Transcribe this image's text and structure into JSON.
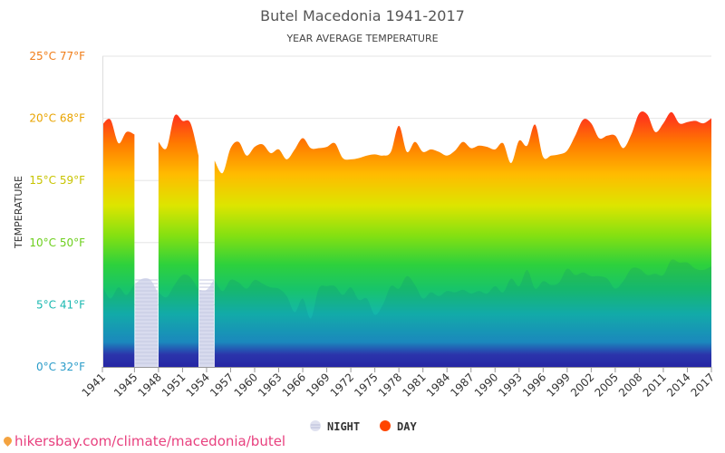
{
  "chart_data": {
    "type": "area",
    "title": "Butel Macedonia 1941-2017",
    "subtitle": "YEAR AVERAGE TEMPERATURE",
    "ylabel": "TEMPERATURE",
    "ylim": [
      0,
      25
    ],
    "xlim": [
      1941,
      2017
    ],
    "y_ticks": [
      {
        "value": 0,
        "label": "0°C 32°F",
        "color": "#2a9cc9"
      },
      {
        "value": 5,
        "label": "5°C 41°F",
        "color": "#19b8b0"
      },
      {
        "value": 10,
        "label": "10°C 50°F",
        "color": "#6ccf1c"
      },
      {
        "value": 15,
        "label": "15°C 59°F",
        "color": "#c8c400"
      },
      {
        "value": 20,
        "label": "20°C 68°F",
        "color": "#e9a400"
      },
      {
        "value": 25,
        "label": "25°C 77°F",
        "color": "#f07c17"
      }
    ],
    "x_ticks": [
      1941,
      1945,
      1948,
      1951,
      1954,
      1957,
      1960,
      1963,
      1966,
      1969,
      1972,
      1975,
      1978,
      1981,
      1984,
      1987,
      1990,
      1993,
      1996,
      1999,
      2002,
      2005,
      2008,
      2011,
      2014,
      2017
    ],
    "x": [
      1941,
      1942,
      1943,
      1944,
      1945,
      1946,
      1947,
      1948,
      1949,
      1950,
      1951,
      1952,
      1953,
      1954,
      1955,
      1956,
      1957,
      1958,
      1959,
      1960,
      1961,
      1962,
      1963,
      1964,
      1965,
      1966,
      1967,
      1968,
      1969,
      1970,
      1971,
      1972,
      1973,
      1974,
      1975,
      1976,
      1977,
      1978,
      1979,
      1980,
      1981,
      1982,
      1983,
      1984,
      1985,
      1986,
      1987,
      1988,
      1989,
      1990,
      1991,
      1992,
      1993,
      1994,
      1995,
      1996,
      1997,
      1998,
      1999,
      2000,
      2001,
      2002,
      2003,
      2004,
      2005,
      2006,
      2007,
      2008,
      2009,
      2010,
      2011,
      2012,
      2013,
      2014,
      2015,
      2016,
      2017
    ],
    "series": [
      {
        "name": "NIGHT",
        "color": "#c9cde8",
        "values": [
          6.5,
          5.5,
          6.4,
          5.8,
          6.7,
          6.9,
          6.8,
          6.0,
          5.6,
          6.6,
          7.4,
          7.2,
          6.2,
          6.0,
          7.0,
          6.1,
          7.0,
          6.8,
          6.3,
          7.0,
          6.7,
          6.4,
          6.3,
          5.7,
          4.4,
          5.5,
          3.9,
          6.3,
          6.5,
          6.5,
          5.8,
          6.4,
          5.4,
          5.5,
          4.2,
          5.0,
          6.5,
          6.3,
          7.3,
          6.6,
          5.5,
          6.0,
          5.7,
          6.1,
          6.0,
          6.2,
          5.9,
          6.1,
          5.9,
          6.5,
          6.0,
          7.1,
          6.5,
          7.8,
          6.3,
          6.9,
          6.6,
          6.8,
          7.9,
          7.4,
          7.6,
          7.3,
          7.3,
          7.1,
          6.3,
          6.9,
          7.9,
          7.9,
          7.4,
          7.5,
          7.4,
          8.6,
          8.4,
          8.4,
          7.9,
          7.8,
          8.1
        ]
      },
      {
        "name": "DAY",
        "color": "#ff4500",
        "values": [
          19.5,
          19.9,
          18.0,
          18.9,
          18.7,
          null,
          null,
          18.1,
          17.6,
          20.2,
          19.8,
          19.6,
          17.0,
          null,
          16.6,
          15.6,
          17.6,
          18.1,
          17.0,
          17.7,
          17.9,
          17.2,
          17.5,
          16.7,
          17.5,
          18.4,
          17.6,
          17.6,
          17.7,
          18.0,
          16.8,
          16.7,
          16.8,
          17.0,
          17.1,
          17.0,
          17.3,
          19.4,
          17.3,
          18.1,
          17.3,
          17.5,
          17.3,
          17.0,
          17.4,
          18.1,
          17.6,
          17.8,
          17.7,
          17.5,
          18.0,
          16.4,
          18.2,
          17.8,
          19.5,
          16.9,
          17.0,
          17.1,
          17.4,
          18.6,
          19.9,
          19.6,
          18.4,
          18.6,
          18.6,
          17.6,
          18.7,
          20.4,
          20.3,
          18.9,
          19.6,
          20.5,
          19.6,
          19.7,
          19.8,
          19.6,
          20.0
        ]
      }
    ],
    "gaps": [
      [
        1946,
        1947
      ],
      [
        1954,
        1954
      ]
    ],
    "legend": {
      "placement": "bottom-center",
      "items": [
        {
          "label": "NIGHT",
          "color": "#c9cde8"
        },
        {
          "label": "DAY",
          "color": "#ff4500"
        }
      ]
    },
    "grid": true,
    "source_text": "hikersbay.com/climate/macedonia/butel"
  }
}
